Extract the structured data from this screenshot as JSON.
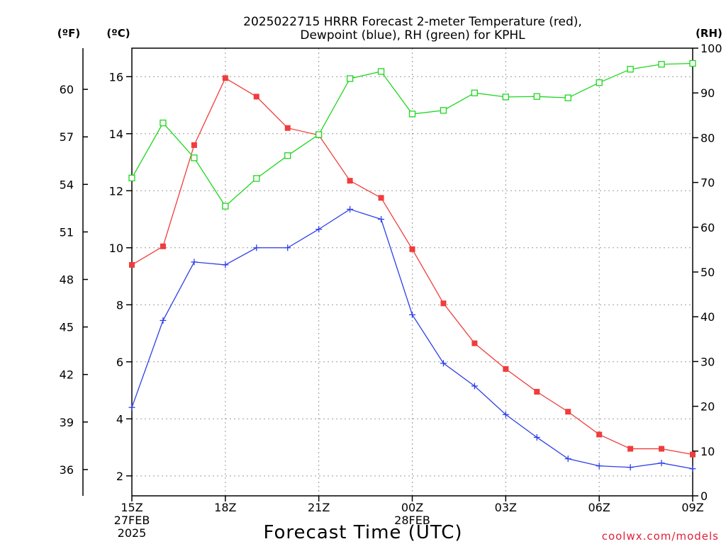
{
  "chart_data": {
    "type": "line",
    "title": "2025022715 HRRR Forecast 2-meter Temperature (red),",
    "subtitle": "Dewpoint (blue), RH (green) for KPHL",
    "xlabel": "Forecast Time (UTC)",
    "credit": "coolwx.com/models",
    "x_ticks": [
      {
        "hour": 0,
        "lines": [
          "15Z",
          "27FEB",
          "2025"
        ]
      },
      {
        "hour": 3,
        "lines": [
          "18Z"
        ]
      },
      {
        "hour": 6,
        "lines": [
          "21Z"
        ]
      },
      {
        "hour": 9,
        "lines": [
          "00Z",
          "28FEB"
        ]
      },
      {
        "hour": 12,
        "lines": [
          "03Z"
        ]
      },
      {
        "hour": 15,
        "lines": [
          "06Z"
        ]
      },
      {
        "hour": 18,
        "lines": [
          "09Z"
        ]
      }
    ],
    "x": [
      0,
      1,
      2,
      3,
      4,
      5,
      6,
      7,
      8,
      9,
      10,
      11,
      12,
      13,
      14,
      15,
      16,
      17,
      18
    ],
    "xlim": [
      0,
      18
    ],
    "axis_left_c": {
      "unit_label": "(ºC)",
      "ylim": [
        1.3,
        17.0
      ],
      "ticks": [
        2,
        4,
        6,
        8,
        10,
        12,
        14,
        16
      ]
    },
    "axis_left_f": {
      "unit_label": "(ºF)",
      "ticks": [
        36,
        39,
        42,
        45,
        48,
        51,
        54,
        57,
        60
      ]
    },
    "axis_right_rh": {
      "unit_label": "(RH)",
      "ylim": [
        0,
        100
      ],
      "ticks": [
        0,
        10,
        20,
        30,
        40,
        50,
        60,
        70,
        80,
        90,
        100
      ]
    },
    "grid": true,
    "series": [
      {
        "name": "Temperature",
        "color": "#f03c3c",
        "marker": "filled-square",
        "axis": "c",
        "values": [
          9.4,
          10.05,
          13.6,
          15.95,
          15.3,
          14.2,
          13.95,
          12.35,
          11.75,
          9.95,
          8.05,
          6.65,
          5.75,
          4.95,
          4.25,
          3.45,
          2.95,
          2.95,
          2.75
        ]
      },
      {
        "name": "Dewpoint",
        "color": "#2d3fe8",
        "marker": "plus",
        "axis": "c",
        "values": [
          4.4,
          7.45,
          9.5,
          9.4,
          10.0,
          10.0,
          10.65,
          11.35,
          11.0,
          7.65,
          5.95,
          5.15,
          4.15,
          3.35,
          2.6,
          2.35,
          2.3,
          2.45,
          2.25
        ]
      },
      {
        "name": "RH",
        "color": "#1fd61f",
        "marker": "open-square",
        "axis": "rh",
        "values": [
          71,
          83.3,
          75.5,
          64.7,
          70.9,
          76.0,
          80.7,
          93.2,
          94.8,
          85.3,
          86.1,
          90.0,
          89.1,
          89.2,
          88.9,
          92.3,
          95.3,
          96.4,
          96.6
        ]
      }
    ]
  }
}
